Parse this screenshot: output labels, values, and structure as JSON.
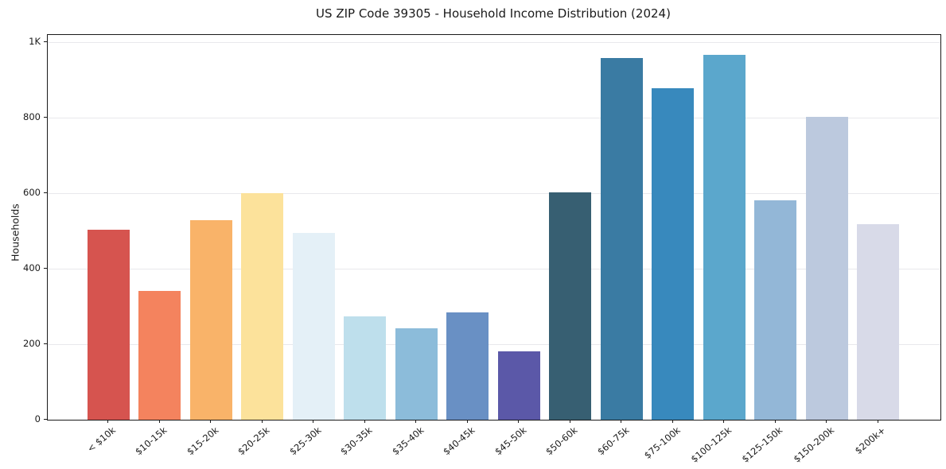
{
  "page": {
    "background": "#ffffff"
  },
  "chart_data": {
    "type": "bar",
    "title": "US ZIP Code 39305 - Household Income Distribution (2024)",
    "xlabel": "",
    "ylabel": "Households",
    "categories": [
      "< $10k",
      "$10-15k",
      "$15-20k",
      "$20-25k",
      "$25-30k",
      "$30-35k",
      "$35-40k",
      "$40-45k",
      "$45-50k",
      "$50-60k",
      "$60-75k",
      "$75-100k",
      "$100-125k",
      "$125-150k",
      "$150-200k",
      "$200k+"
    ],
    "values": [
      504,
      341,
      529,
      601,
      496,
      275,
      243,
      285,
      182,
      602,
      958,
      878,
      968,
      581,
      803,
      519
    ],
    "bar_colors": [
      "#d6544f",
      "#f4835e",
      "#f9b369",
      "#fce29b",
      "#e4f0f7",
      "#bedfec",
      "#8cbcda",
      "#6990c4",
      "#5b58a8",
      "#375f72",
      "#3a7ba3",
      "#3889bd",
      "#5ba7cc",
      "#93b7d7",
      "#bcc9de",
      "#d8dae8"
    ],
    "ylim": [
      0,
      1020
    ],
    "yticks": [
      {
        "value": 0,
        "label": "0"
      },
      {
        "value": 200,
        "label": "200"
      },
      {
        "value": 400,
        "label": "400"
      },
      {
        "value": 600,
        "label": "600"
      },
      {
        "value": 800,
        "label": "800"
      },
      {
        "value": 1000,
        "label": "1K"
      }
    ],
    "grid": "horizontal-only",
    "gridline_color": "#e8e8ec",
    "spine_color": "#1a1a1a",
    "legend_position": "none",
    "x_tick_rotation_deg": 40
  }
}
